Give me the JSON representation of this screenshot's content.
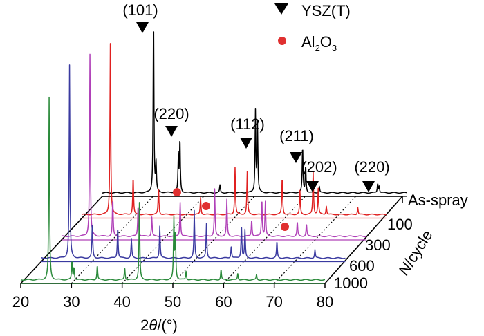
{
  "chart_data": {
    "type": "line",
    "title": "",
    "xlabel_prefix": "2",
    "xlabel_symbol": "θ",
    "xlabel_suffix": "/(°)",
    "zlabel_italic": "N",
    "zlabel_rest": "/cycle",
    "xlim": [
      20,
      80
    ],
    "xticks": [
      20,
      30,
      40,
      50,
      60,
      70,
      80
    ],
    "series": [
      {
        "name": "As-spray",
        "color": "#000000",
        "peaks": [
          [
            30.1,
            8.5
          ],
          [
            30.6,
            1.3
          ],
          [
            35.0,
            1.7
          ],
          [
            35.3,
            2.5
          ],
          [
            43.2,
            0.35
          ],
          [
            50.2,
            3.8
          ],
          [
            50.6,
            3.2
          ],
          [
            59.5,
            2.2
          ],
          [
            60.1,
            1.3
          ],
          [
            62.8,
            0.3
          ],
          [
            74.3,
            0.45
          ],
          [
            74.6,
            0.3
          ]
        ]
      },
      {
        "name": "100",
        "color": "#e02020",
        "peaks": [
          [
            25.6,
            8.0
          ],
          [
            30.1,
            1.8
          ],
          [
            35.1,
            1.3
          ],
          [
            43.4,
            0.8
          ],
          [
            50.2,
            2.2
          ],
          [
            52.6,
            2.0
          ],
          [
            59.5,
            1.8
          ],
          [
            63.0,
            1.1
          ],
          [
            65.6,
            2.0
          ],
          [
            66.6,
            1.2
          ],
          [
            68.2,
            0.4
          ],
          [
            74.4,
            0.35
          ]
        ]
      },
      {
        "name": "300",
        "color": "#b040b8",
        "peaks": [
          [
            25.6,
            8.5
          ],
          [
            30.1,
            1.8
          ],
          [
            35.1,
            1.5
          ],
          [
            37.8,
            0.9
          ],
          [
            43.4,
            1.6
          ],
          [
            50.2,
            2.2
          ],
          [
            52.6,
            1.7
          ],
          [
            57.5,
            0.8
          ],
          [
            59.5,
            1.8
          ],
          [
            60.2,
            1.6
          ],
          [
            66.5,
            0.7
          ],
          [
            68.3,
            0.6
          ]
        ]
      },
      {
        "name": "600",
        "color": "#3a3aa0",
        "peaks": [
          [
            25.6,
            9.0
          ],
          [
            30.1,
            1.7
          ],
          [
            35.1,
            1.5
          ],
          [
            37.8,
            0.9
          ],
          [
            43.4,
            1.5
          ],
          [
            50.2,
            2.2
          ],
          [
            52.6,
            1.6
          ],
          [
            57.5,
            0.6
          ],
          [
            59.5,
            1.6
          ],
          [
            60.2,
            1.3
          ],
          [
            66.5,
            0.8
          ],
          [
            74.0,
            0.4
          ]
        ]
      },
      {
        "name": "1000",
        "color": "#2a8a3a",
        "peaks": [
          [
            25.6,
            8.5
          ],
          [
            30.1,
            0.9
          ],
          [
            30.5,
            0.6
          ],
          [
            35.1,
            0.7
          ],
          [
            40.5,
            0.6
          ],
          [
            43.4,
            3.6
          ],
          [
            50.2,
            2.8
          ],
          [
            50.5,
            2.2
          ],
          [
            52.6,
            0.4
          ],
          [
            59.5,
            0.5
          ],
          [
            62.8,
            0.3
          ],
          [
            66.5,
            0.25
          ]
        ]
      }
    ],
    "peak_labels": [
      "(101)",
      "(220)",
      "(112)",
      "(211)",
      "(202)",
      "(220)"
    ],
    "legend": {
      "ysz": "YSZ(T)",
      "al_base": "Al",
      "al_sub1": "2",
      "al_mid": "O",
      "al_sub2": "3"
    }
  }
}
